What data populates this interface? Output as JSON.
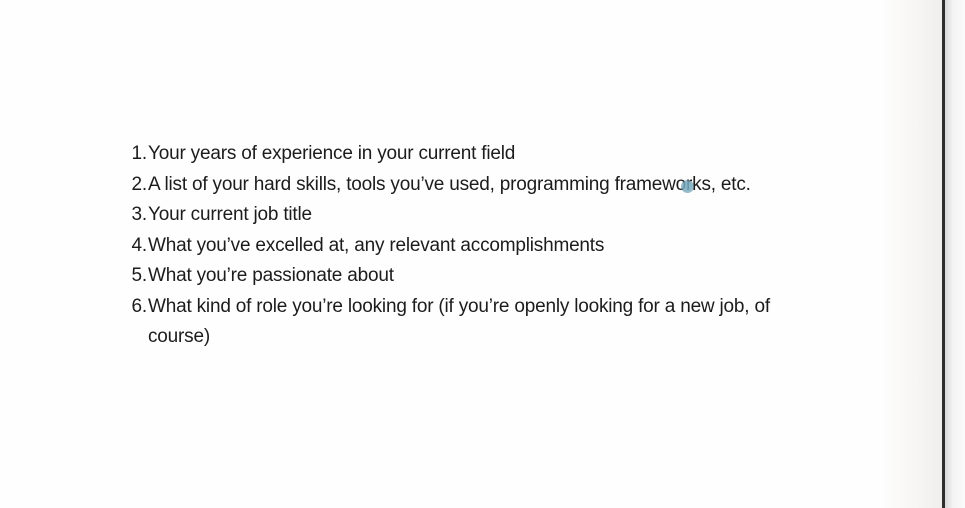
{
  "list": {
    "items": [
      {
        "number": "1.",
        "text": "Your years of experience in your current field"
      },
      {
        "number": "2.",
        "text": "A list of your hard skills, tools you’ve used, programming frameworks, etc."
      },
      {
        "number": "3.",
        "text": "Your current job title"
      },
      {
        "number": "4.",
        "text": "What you’ve excelled at, any relevant accomplishments"
      },
      {
        "number": "5.",
        "text": "What you’re passionate about"
      },
      {
        "number": "6.",
        "text": "What kind of role you’re looking for (if you’re openly looking for a new job, of course)"
      }
    ]
  },
  "colors": {
    "text": "#1c1c1c",
    "background": "#fefefe",
    "cursor": "#78aabe"
  },
  "icons": {
    "cursor": "touch-cursor-icon"
  }
}
